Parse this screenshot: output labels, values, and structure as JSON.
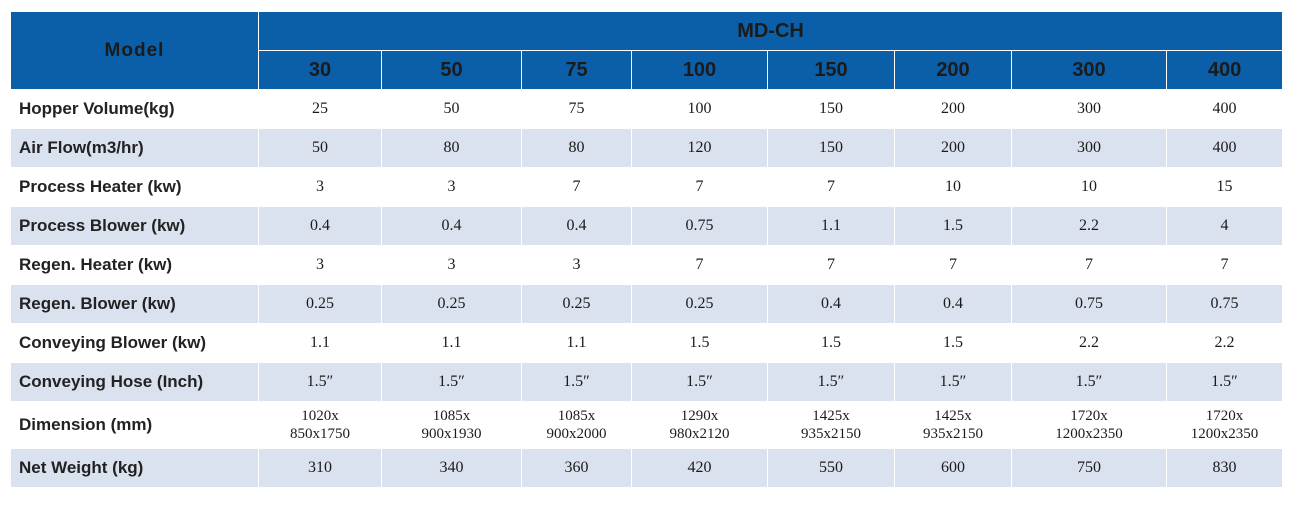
{
  "header": {
    "model_label": "Model",
    "series_label": "MD-CH",
    "capacities": [
      "30",
      "50",
      "75",
      "100",
      "150",
      "200",
      "300",
      "400"
    ]
  },
  "rows": [
    {
      "label": "Hopper Volume(kg)",
      "values": [
        "25",
        "50",
        "75",
        "100",
        "150",
        "200",
        "300",
        "400"
      ]
    },
    {
      "label": "Air Flow(m3/hr)",
      "values": [
        "50",
        "80",
        "80",
        "120",
        "150",
        "200",
        "300",
        "400"
      ]
    },
    {
      "label": "Process Heater (kw)",
      "values": [
        "3",
        "3",
        "7",
        "7",
        "7",
        "10",
        "10",
        "15"
      ]
    },
    {
      "label": "Process Blower (kw)",
      "values": [
        "0.4",
        "0.4",
        "0.4",
        "0.75",
        "1.1",
        "1.5",
        "2.2",
        "4"
      ]
    },
    {
      "label": "Regen. Heater (kw)",
      "values": [
        "3",
        "3",
        "3",
        "7",
        "7",
        "7",
        "7",
        "7"
      ]
    },
    {
      "label": "Regen. Blower (kw)",
      "values": [
        "0.25",
        "0.25",
        "0.25",
        "0.25",
        "0.4",
        "0.4",
        "0.75",
        "0.75"
      ]
    },
    {
      "label": "Conveying Blower (kw)",
      "values": [
        "1.1",
        "1.1",
        "1.1",
        "1.5",
        "1.5",
        "1.5",
        "2.2",
        "2.2"
      ]
    },
    {
      "label": "Conveying Hose (Inch)",
      "values": [
        "1.5″",
        "1.5″",
        "1.5″",
        "1.5″",
        "1.5″",
        "1.5″",
        "1.5″",
        "1.5″"
      ]
    },
    {
      "label": "Dimension  (mm)",
      "values": [
        [
          "1020x",
          "850x1750"
        ],
        [
          "1085x",
          "900x1930"
        ],
        [
          "1085x",
          "900x2000"
        ],
        [
          "1290x",
          "980x2120"
        ],
        [
          "1425x",
          "935x2150"
        ],
        [
          "1425x",
          "935x2150"
        ],
        [
          "1720x",
          "1200x2350"
        ],
        [
          "1720x",
          "1200x2350"
        ]
      ]
    },
    {
      "label": "Net Weight (kg)",
      "values": [
        "310",
        "340",
        "360",
        "420",
        "550",
        "600",
        "750",
        "830"
      ]
    }
  ],
  "colors": {
    "header_blue": "#0a5fa8",
    "row_stripe": "#d9e2ee",
    "row_plain": "#ffffff"
  }
}
